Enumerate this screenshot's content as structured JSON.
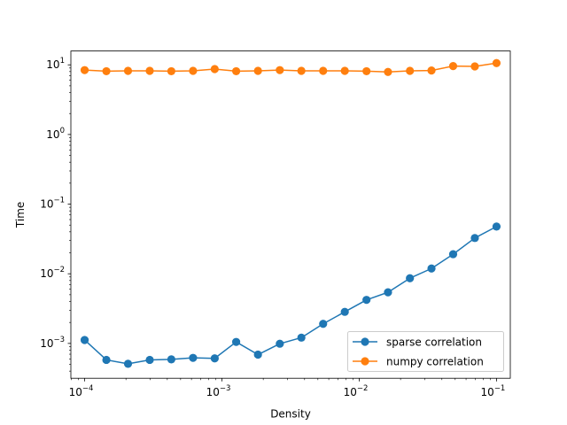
{
  "chart_data": {
    "type": "line",
    "xlabel": "Density",
    "ylabel": "Time",
    "xscale": "log",
    "yscale": "log",
    "xlim": [
      7.94e-05,
      0.126
    ],
    "ylim": [
      0.000316,
      15.8
    ],
    "grid": false,
    "legend_position": "lower-right",
    "x": [
      0.0001,
      0.000144,
      0.000207,
      0.000298,
      0.000428,
      0.000616,
      0.000886,
      0.00127,
      0.00183,
      0.00264,
      0.00379,
      0.00546,
      0.00785,
      0.0113,
      0.0162,
      0.0234,
      0.0336,
      0.0483,
      0.0695,
      0.1
    ],
    "series": [
      {
        "name": "sparse correlation",
        "color": "#1f77b4",
        "values": [
          0.00112,
          0.00058,
          0.00051,
          0.00058,
          0.00059,
          0.00062,
          0.00061,
          0.00105,
          0.00069,
          0.00099,
          0.00121,
          0.00191,
          0.00284,
          0.00422,
          0.00542,
          0.00863,
          0.0119,
          0.0191,
          0.0326,
          0.0476
        ]
      },
      {
        "name": "numpy correlation",
        "color": "#ff7f0e",
        "values": [
          8.4,
          8.1,
          8.2,
          8.2,
          8.1,
          8.2,
          8.7,
          8.1,
          8.2,
          8.4,
          8.2,
          8.2,
          8.2,
          8.1,
          7.9,
          8.2,
          8.3,
          9.6,
          9.5,
          10.6
        ]
      }
    ],
    "x_ticks": [
      {
        "value": 0.0001,
        "base": "10",
        "exp": "−4"
      },
      {
        "value": 0.001,
        "base": "10",
        "exp": "−3"
      },
      {
        "value": 0.01,
        "base": "10",
        "exp": "−2"
      },
      {
        "value": 0.1,
        "base": "10",
        "exp": "−1"
      }
    ],
    "y_ticks": [
      {
        "value": 0.001,
        "base": "10",
        "exp": "−3"
      },
      {
        "value": 0.01,
        "base": "10",
        "exp": "−2"
      },
      {
        "value": 0.1,
        "base": "10",
        "exp": "−1"
      },
      {
        "value": 1,
        "base": "10",
        "exp": "0"
      },
      {
        "value": 10,
        "base": "10",
        "exp": "1"
      }
    ]
  }
}
